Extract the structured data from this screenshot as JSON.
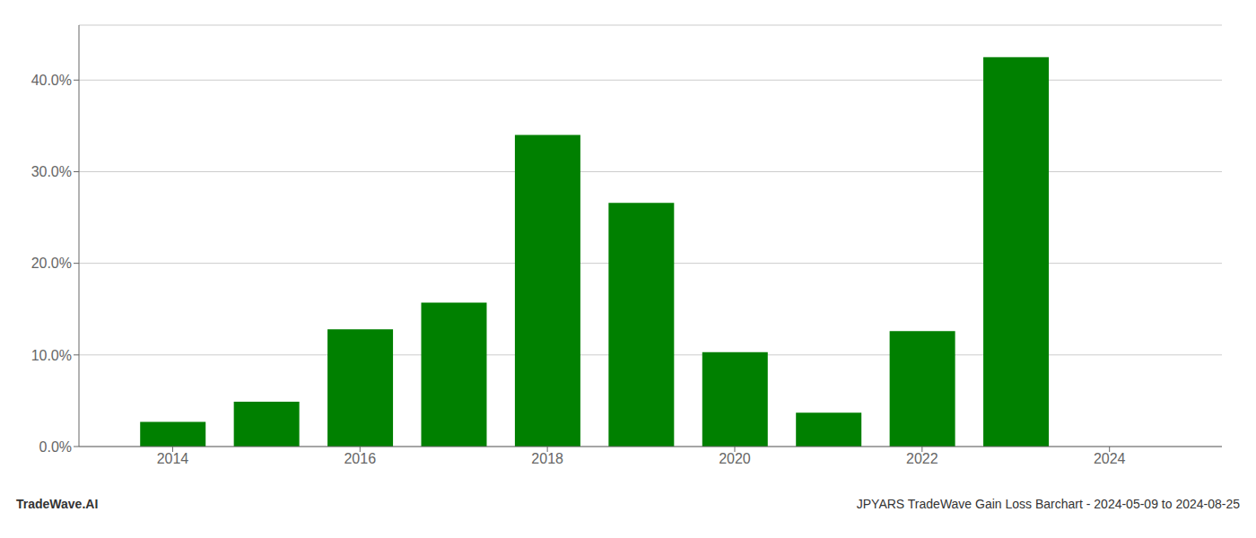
{
  "chart_data": {
    "type": "bar",
    "x": [
      2014,
      2015,
      2016,
      2017,
      2018,
      2019,
      2020,
      2021,
      2022,
      2023
    ],
    "values": [
      0.027,
      0.049,
      0.128,
      0.157,
      0.34,
      0.266,
      0.103,
      0.037,
      0.126,
      0.425
    ],
    "color": "#008000",
    "xlim": [
      2013.0,
      2025.2
    ],
    "xticks": [
      2014,
      2016,
      2018,
      2020,
      2022,
      2024
    ],
    "ylim": [
      0,
      0.46
    ],
    "yticks": [
      {
        "value": 0.0,
        "label": "0.0%"
      },
      {
        "value": 0.1,
        "label": "10.0%"
      },
      {
        "value": 0.2,
        "label": "20.0%"
      },
      {
        "value": 0.3,
        "label": "30.0%"
      },
      {
        "value": 0.4,
        "label": "40.0%"
      }
    ],
    "grid": true,
    "annotations": [
      "TradeWave.AI",
      "JPYARS TradeWave Gain Loss Barchart - 2024-05-09 to 2024-08-25"
    ]
  }
}
